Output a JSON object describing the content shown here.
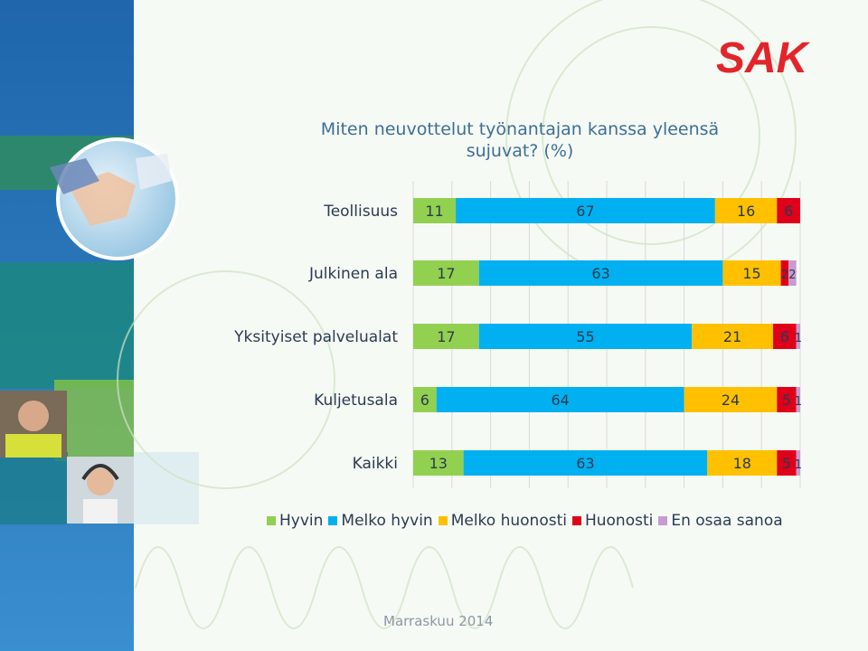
{
  "logo_text": "SAK",
  "chart_data": {
    "type": "bar",
    "orientation": "horizontal",
    "stacked": true,
    "title": "Miten neuvottelut työnantajan kanssa yleensä sujuvat? (%)",
    "categories": [
      "Teollisuus",
      "Julkinen ala",
      "Yksityiset palvelualat",
      "Kuljetusala",
      "Kaikki"
    ],
    "series": [
      {
        "name": "Hyvin",
        "color": "#92d050",
        "values": [
          11,
          17,
          17,
          6,
          13
        ]
      },
      {
        "name": "Melko hyvin",
        "color": "#00b0f0",
        "values": [
          67,
          63,
          55,
          64,
          63
        ]
      },
      {
        "name": "Melko huonosti",
        "color": "#ffc000",
        "values": [
          16,
          15,
          21,
          24,
          18
        ]
      },
      {
        "name": "Huonosti",
        "color": "#e0001a",
        "values": [
          6,
          2,
          6,
          5,
          5
        ]
      },
      {
        "name": "En osaa sanoa",
        "color": "#c79bd1",
        "values": [
          0,
          2,
          1,
          1,
          1
        ]
      }
    ],
    "xlim": [
      0,
      100
    ],
    "grid": true,
    "legend": "bottom"
  },
  "footer": "Marraskuu 2014"
}
